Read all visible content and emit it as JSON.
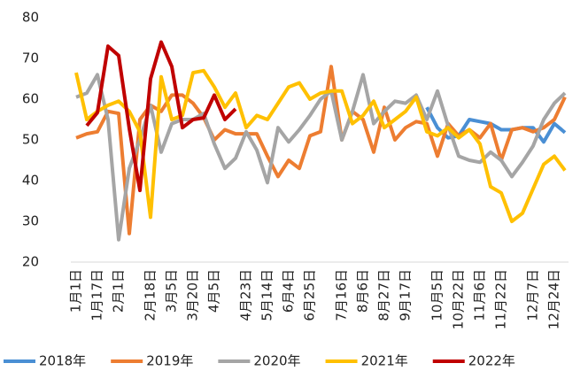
{
  "chart_data": {
    "type": "line",
    "categories": [
      "1月1日",
      null,
      "1月17日",
      null,
      "2月1日",
      null,
      null,
      "2月18日",
      null,
      "3月5日",
      null,
      "3月20日",
      null,
      "4月5日",
      null,
      null,
      "4月23日",
      null,
      "5月14日",
      null,
      "6月4日",
      null,
      "6月25日",
      null,
      null,
      "7月16日",
      null,
      "8月6日",
      null,
      "8月27日",
      null,
      "9月17日",
      null,
      null,
      "10月5日",
      null,
      "10月22日",
      null,
      "11月6日",
      null,
      "11月22日",
      null,
      null,
      "12月7日",
      null,
      "12月24日",
      null
    ],
    "series": [
      {
        "name": "2018年",
        "color": "#4a8fd4",
        "values": [
          null,
          null,
          null,
          null,
          null,
          null,
          null,
          null,
          null,
          null,
          null,
          null,
          null,
          null,
          null,
          null,
          null,
          null,
          null,
          null,
          null,
          null,
          null,
          null,
          null,
          null,
          null,
          null,
          null,
          null,
          null,
          null,
          null,
          58,
          53,
          50.5,
          51,
          55,
          54.5,
          54,
          52.5,
          52.5,
          53,
          53,
          49.5,
          54,
          51.8
        ]
      },
      {
        "name": "2019年",
        "color": "#ed7d31",
        "values": [
          50.5,
          51.5,
          52,
          57,
          56.5,
          27,
          55,
          58.5,
          57,
          61,
          61,
          59,
          55.5,
          50,
          52.5,
          51.5,
          51.5,
          51.5,
          46,
          41,
          45,
          43,
          51,
          52,
          68,
          50,
          57,
          55,
          47,
          58,
          50,
          53,
          54.5,
          54,
          46,
          54,
          51,
          52.5,
          50.5,
          54,
          45,
          52.5,
          53,
          52,
          53,
          55,
          60.5
        ]
      },
      {
        "name": "2020年",
        "color": "#a5a5a5",
        "values": [
          60.5,
          61.5,
          66,
          55,
          25.5,
          43,
          50,
          58.5,
          47,
          54,
          55,
          55,
          56.5,
          49,
          43,
          45.5,
          52,
          47.5,
          39.5,
          53,
          49.5,
          52.5,
          56,
          60,
          62,
          50,
          57,
          66,
          54,
          57,
          59.5,
          59,
          61,
          55,
          62,
          53.5,
          46,
          45,
          44.5,
          47,
          45,
          41,
          44.5,
          48.5,
          55,
          59,
          61.5
        ]
      },
      {
        "name": "2021年",
        "color": "#ffc000",
        "values": [
          66.5,
          55,
          57,
          58.5,
          59.5,
          57,
          52,
          31,
          65.5,
          55,
          56,
          66.5,
          67,
          63,
          58,
          61.5,
          53,
          56,
          55,
          59,
          63,
          64,
          60,
          61.5,
          62,
          62,
          54,
          56,
          59.5,
          53,
          55,
          57,
          60.5,
          52,
          51,
          53,
          50.5,
          52.5,
          49,
          38.5,
          37,
          30,
          32,
          38,
          44,
          46,
          42.5
        ]
      },
      {
        "name": "2022年",
        "color": "#c00000",
        "values": [
          null,
          53.5,
          56.7,
          73,
          70.7,
          52.8,
          37.6,
          65,
          74,
          68,
          53,
          55,
          55.4,
          61,
          55,
          57.6,
          null,
          null,
          null,
          null,
          null,
          null,
          null,
          null,
          null,
          null,
          null,
          null,
          null,
          null,
          null,
          null,
          null,
          null,
          null,
          null,
          null,
          null,
          null,
          null,
          null,
          null,
          null,
          null,
          null,
          null,
          null
        ]
      }
    ],
    "ylim": [
      20,
      80
    ],
    "yticks": [
      20,
      30,
      40,
      50,
      60,
      70,
      80
    ],
    "legend": "bottom"
  }
}
